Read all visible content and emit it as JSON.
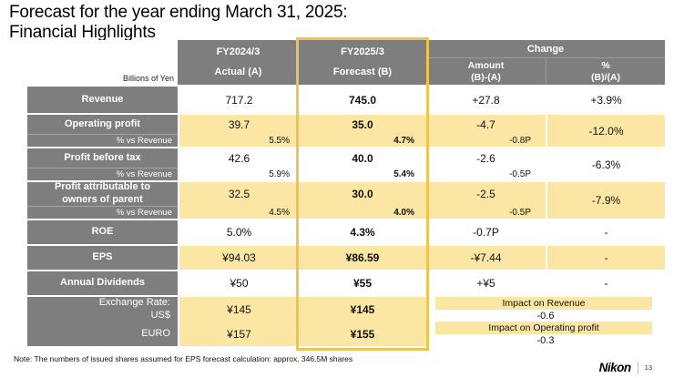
{
  "slide": {
    "title_line1": "Forecast for the year ending March 31, 2025:",
    "title_line2": "Financial Highlights",
    "note": "Note: The numbers of issued shares assumed for EPS forecast calculation: approx. 346.5M shares",
    "brand": "Nikon",
    "page_number": "13"
  },
  "colors": {
    "header_gray": "#7E7E7E",
    "row_yellow": "#FBE7A3",
    "highlight_gold": "#EEC64F"
  },
  "table": {
    "unit_label": "Billions of Yen",
    "headers": {
      "col_a_line1": "FY2024/3",
      "col_a_line2": "Actual (A)",
      "col_b_line1": "FY2025/3",
      "col_b_line2": "Forecast (B)",
      "change": "Change",
      "amount_line1": "Amount",
      "amount_line2": "(B)-(A)",
      "pct_line1": "%",
      "pct_line2": "(B)/(A)"
    },
    "rows": [
      {
        "label": "Revenue",
        "a": "717.2",
        "b": "745.0",
        "amount": "+27.8",
        "pct": "+3.9%"
      },
      {
        "label": "Operating profit",
        "sub_label": "% vs Revenue",
        "a": "39.7",
        "b": "35.0",
        "amount": "-4.7",
        "sub_a": "5.5%",
        "sub_b": "4.7%",
        "sub_amount": "-0.8P",
        "pct": "-12.0%"
      },
      {
        "label": "Profit before tax",
        "sub_label": "% vs Revenue",
        "a": "42.6",
        "b": "40.0",
        "amount": "-2.6",
        "sub_a": "5.9%",
        "sub_b": "5.4%",
        "sub_amount": "-0.5P",
        "pct": "-6.3%"
      },
      {
        "label": "Profit attributable to owners of parent",
        "sub_label": "% vs Revenue",
        "a": "32.5",
        "b": "30.0",
        "amount": "-2.5",
        "sub_a": "4.5%",
        "sub_b": "4.0%",
        "sub_amount": "-0.5P",
        "pct": "-7.9%"
      },
      {
        "label": "ROE",
        "a": "5.0%",
        "b": "4.3%",
        "amount": "-0.7P",
        "pct": "-"
      },
      {
        "label": "EPS",
        "a": "¥94.03",
        "b": "¥86.59",
        "amount": "-¥7.44",
        "pct": "-"
      },
      {
        "label": "Annual Dividends",
        "a": "¥50",
        "b": "¥55",
        "amount": "+¥5",
        "pct": "-"
      }
    ],
    "exchange": {
      "label_line1": "Exchange Rate:",
      "label_line2": "US$",
      "label_line3": "EURO",
      "usd_a": "¥145",
      "usd_b": "¥145",
      "eur_a": "¥157",
      "eur_b": "¥155",
      "impact_revenue_label": "Impact on Revenue",
      "impact_revenue_value": "-0.6",
      "impact_op_label": "Impact on Operating profit",
      "impact_op_value": "-0.3"
    }
  }
}
